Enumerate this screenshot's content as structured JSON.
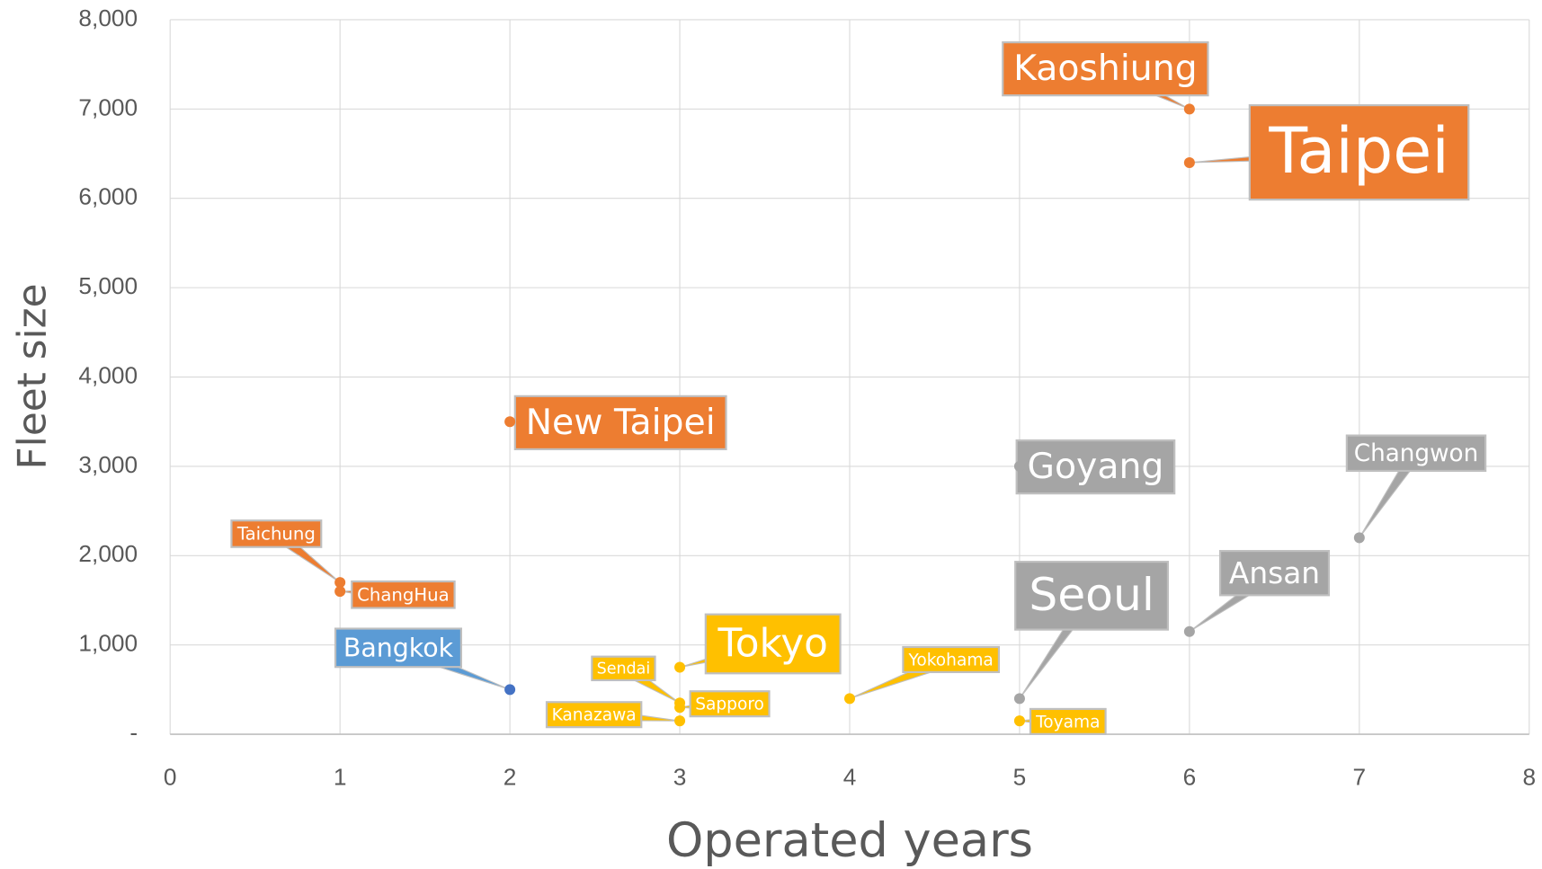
{
  "chart_data": {
    "type": "scatter",
    "x_label": "Operated years",
    "y_label": "Fleet size",
    "xlim": [
      0,
      8
    ],
    "ylim": [
      0,
      8000
    ],
    "xticks": [
      0,
      1,
      2,
      3,
      4,
      5,
      6,
      7,
      8
    ],
    "yticks": [
      {
        "value": 0,
        "label": "-"
      },
      {
        "value": 1000,
        "label": "1,000"
      },
      {
        "value": 2000,
        "label": "2,000"
      },
      {
        "value": 3000,
        "label": "3,000"
      },
      {
        "value": 4000,
        "label": "4,000"
      },
      {
        "value": 5000,
        "label": "5,000"
      },
      {
        "value": 6000,
        "label": "6,000"
      },
      {
        "value": 7000,
        "label": "7,000"
      },
      {
        "value": 8000,
        "label": "8,000"
      }
    ],
    "grid": true,
    "points": [
      {
        "label": "Kaoshiung",
        "x": 6,
        "y": 7000,
        "color": "#ed7d31"
      },
      {
        "label": "Taipei",
        "x": 6,
        "y": 6400,
        "color": "#ed7d31"
      },
      {
        "label": "New Taipei",
        "x": 2,
        "y": 3500,
        "color": "#ed7d31"
      },
      {
        "label": "Taichung",
        "x": 1,
        "y": 1700,
        "color": "#ed7d31"
      },
      {
        "label": "ChangHua",
        "x": 1,
        "y": 1600,
        "color": "#ed7d31"
      },
      {
        "label": "Bangkok",
        "x": 2,
        "y": 500,
        "color": "#4472c4",
        "label_color": "#5b9bd5"
      },
      {
        "label": "Tokyo",
        "x": 3,
        "y": 750,
        "color": "#ffc000"
      },
      {
        "label": "Sendai",
        "x": 3,
        "y": 350,
        "color": "#ffc000"
      },
      {
        "label": "Sapporo",
        "x": 3,
        "y": 300,
        "color": "#ffc000"
      },
      {
        "label": "Kanazawa",
        "x": 3,
        "y": 150,
        "color": "#ffc000"
      },
      {
        "label": "Yokohama",
        "x": 4,
        "y": 400,
        "color": "#ffc000"
      },
      {
        "label": "Toyama",
        "x": 5,
        "y": 150,
        "color": "#ffc000"
      },
      {
        "label": "Seoul",
        "x": 5,
        "y": 400,
        "color": "#a5a5a5"
      },
      {
        "label": "Goyang",
        "x": 5,
        "y": 3000,
        "color": "#a5a5a5"
      },
      {
        "label": "Ansan",
        "x": 6,
        "y": 1150,
        "color": "#a5a5a5"
      },
      {
        "label": "Changwon",
        "x": 7,
        "y": 2200,
        "color": "#a5a5a5"
      }
    ]
  }
}
